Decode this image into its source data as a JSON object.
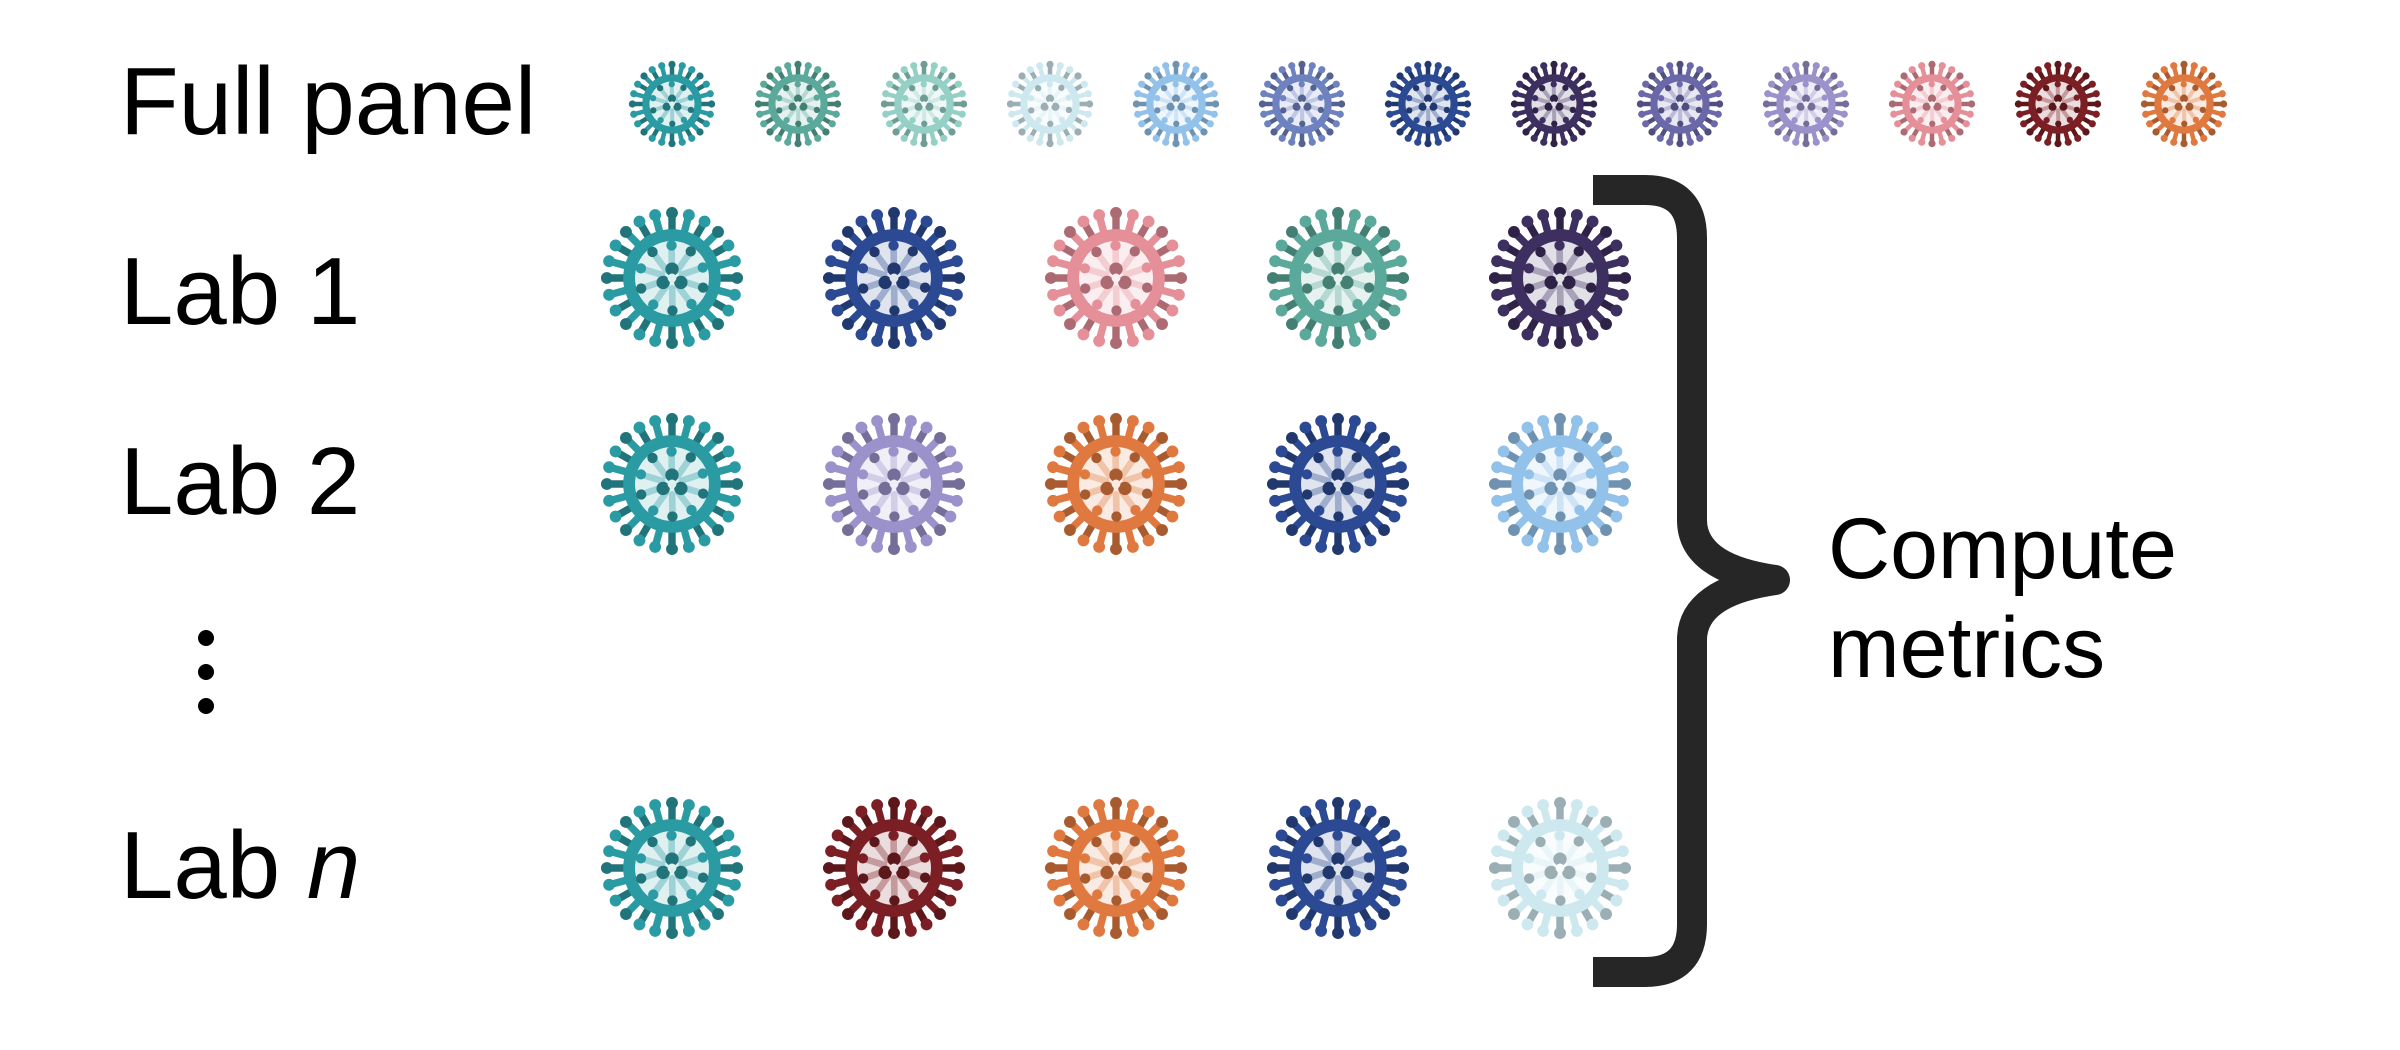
{
  "labels": {
    "full_panel": "Full panel",
    "lab1": "Lab 1",
    "lab2": "Lab 2",
    "labn_prefix": "Lab ",
    "labn_var": "n",
    "bracket_line1": "Compute",
    "bracket_line2": "metrics"
  },
  "palette": {
    "teal": "#2a9ba3",
    "sea_green": "#5aa99a",
    "mint": "#94d0c6",
    "ice": "#cde8ef",
    "sky": "#92c2ea",
    "periwinkle": "#6f82c0",
    "navy": "#2c4a93",
    "plum": "#3d2f5f",
    "slate_violet": "#6a68a8",
    "lavender": "#9c92cb",
    "rose": "#e58f98",
    "maroon": "#7b1f24",
    "orange": "#e0793f"
  },
  "rows": {
    "full_panel": [
      "teal",
      "sea_green",
      "mint",
      "ice",
      "sky",
      "periwinkle",
      "navy",
      "plum",
      "slate_violet",
      "lavender",
      "rose",
      "maroon",
      "orange"
    ],
    "lab1": [
      "teal",
      "navy",
      "rose",
      "sea_green",
      "plum"
    ],
    "lab2": [
      "teal",
      "lavender",
      "orange",
      "navy",
      "sky"
    ],
    "labn": [
      "teal",
      "maroon",
      "orange",
      "navy",
      "ice"
    ]
  },
  "colors": {
    "text": "#000000",
    "bracket": "#262626"
  }
}
